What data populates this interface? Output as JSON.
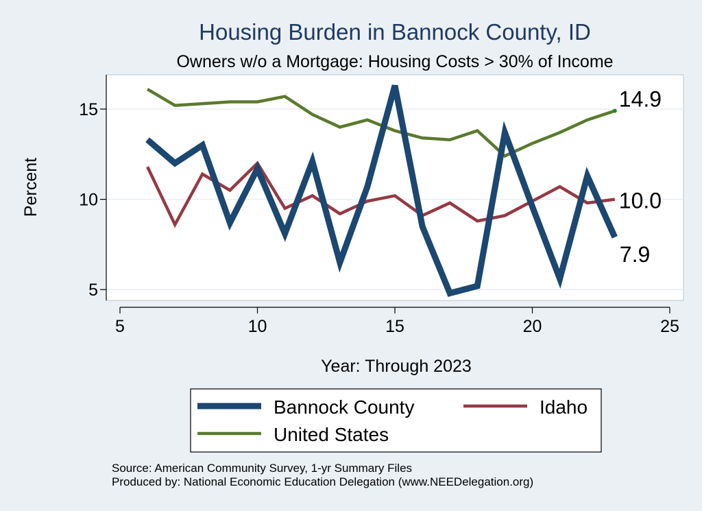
{
  "chart_data": {
    "type": "line",
    "title": "Housing Burden in Bannock County, ID",
    "subtitle": "Owners w/o a Mortgage: Housing Costs > 30% of Income",
    "xlabel": "Year: Through 2023",
    "ylabel": "Percent",
    "xlim": [
      5,
      25
    ],
    "ylim": [
      4.4,
      16.9
    ],
    "xticks": [
      5,
      10,
      15,
      20,
      25
    ],
    "yticks": [
      5,
      10,
      15
    ],
    "grid": true,
    "legend_position": "bottom",
    "series": [
      {
        "name": "Bannock County",
        "color": "#1b4770",
        "x": [
          6,
          7,
          8,
          9,
          10,
          11,
          12,
          13,
          14,
          15,
          16,
          17,
          18,
          19,
          20,
          21,
          22,
          23
        ],
        "values": [
          13.3,
          12.0,
          13.0,
          8.7,
          11.7,
          8.1,
          12.1,
          6.5,
          10.7,
          16.3,
          8.5,
          4.8,
          5.2,
          13.7,
          9.6,
          5.6,
          11.3,
          7.9
        ],
        "end_label": "7.9"
      },
      {
        "name": "Idaho",
        "color": "#943a43",
        "x": [
          6,
          7,
          8,
          9,
          10,
          11,
          12,
          13,
          14,
          15,
          16,
          17,
          18,
          19,
          20,
          21,
          22,
          23
        ],
        "values": [
          11.8,
          8.6,
          11.4,
          10.5,
          12.0,
          9.5,
          10.2,
          9.2,
          9.9,
          10.2,
          9.1,
          9.8,
          8.8,
          9.1,
          9.9,
          10.7,
          9.8,
          10.0
        ],
        "end_label": "10.0"
      },
      {
        "name": "United States",
        "color": "#5a7a2e",
        "x": [
          6,
          7,
          8,
          9,
          10,
          11,
          12,
          13,
          14,
          15,
          16,
          17,
          18,
          19,
          20,
          21,
          22,
          23
        ],
        "values": [
          16.1,
          15.2,
          15.3,
          15.4,
          15.4,
          15.7,
          14.7,
          14.0,
          14.4,
          13.8,
          13.4,
          13.3,
          13.8,
          12.4,
          13.1,
          13.7,
          14.4,
          14.9
        ],
        "end_label": "14.9"
      }
    ]
  },
  "source": {
    "line1": "Source: American Community Survey, 1-yr Summary Files",
    "line2": "Produced by: National Economic Education Delegation (www.NEEDelegation.org)"
  }
}
